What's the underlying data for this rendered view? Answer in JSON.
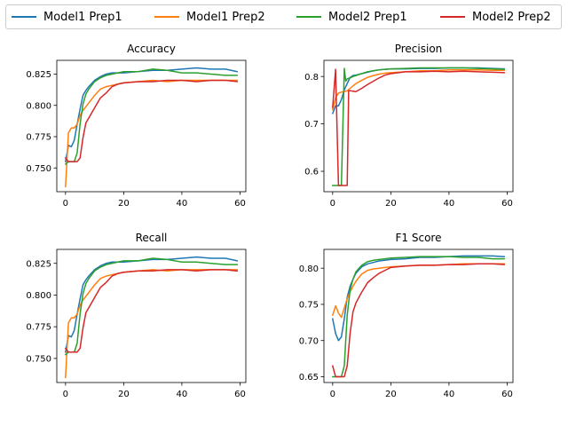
{
  "legend": [
    {
      "name": "Model1 Prep1",
      "color": "#1f77b4"
    },
    {
      "name": "Model1 Prep2",
      "color": "#ff7f0e"
    },
    {
      "name": "Model2 Prep1",
      "color": "#2ca02c"
    },
    {
      "name": "Model2 Prep2",
      "color": "#d62728"
    }
  ],
  "chart_data": [
    {
      "type": "line",
      "title": "Accuracy",
      "xlim": [
        -3,
        62
      ],
      "ylim": [
        0.731,
        0.836
      ],
      "xticks": [
        0,
        20,
        40,
        60
      ],
      "yticks": [
        0.75,
        0.775,
        0.8,
        0.825
      ],
      "yticklabels": [
        "0.750",
        "0.775",
        "0.800",
        "0.825"
      ],
      "series": [
        {
          "name": "Model1 Prep1",
          "color": "#1f77b4",
          "x": [
            0,
            1,
            2,
            3,
            4,
            5,
            6,
            7,
            8,
            10,
            12,
            14,
            16,
            18,
            20,
            25,
            30,
            35,
            40,
            45,
            50,
            55,
            59
          ],
          "y": [
            0.755,
            0.768,
            0.767,
            0.772,
            0.785,
            0.797,
            0.808,
            0.812,
            0.815,
            0.82,
            0.823,
            0.825,
            0.826,
            0.826,
            0.826,
            0.827,
            0.828,
            0.828,
            0.829,
            0.83,
            0.829,
            0.829,
            0.827
          ]
        },
        {
          "name": "Model1 Prep2",
          "color": "#ff7f0e",
          "x": [
            0,
            1,
            2,
            3,
            4,
            5,
            6,
            7,
            8,
            10,
            12,
            14,
            16,
            18,
            20,
            25,
            30,
            35,
            40,
            45,
            50,
            55,
            59
          ],
          "y": [
            0.735,
            0.778,
            0.782,
            0.782,
            0.785,
            0.792,
            0.796,
            0.799,
            0.802,
            0.808,
            0.813,
            0.815,
            0.816,
            0.817,
            0.818,
            0.819,
            0.82,
            0.819,
            0.82,
            0.82,
            0.82,
            0.82,
            0.82
          ]
        },
        {
          "name": "Model2 Prep1",
          "color": "#2ca02c",
          "x": [
            0,
            1,
            2,
            3,
            4,
            5,
            6,
            7,
            8,
            10,
            12,
            14,
            16,
            18,
            20,
            25,
            30,
            35,
            40,
            45,
            50,
            55,
            59
          ],
          "y": [
            0.753,
            0.755,
            0.755,
            0.755,
            0.762,
            0.785,
            0.801,
            0.809,
            0.813,
            0.819,
            0.822,
            0.824,
            0.825,
            0.826,
            0.827,
            0.827,
            0.829,
            0.828,
            0.826,
            0.826,
            0.825,
            0.824,
            0.824
          ]
        },
        {
          "name": "Model2 Prep2",
          "color": "#d62728",
          "x": [
            0,
            1,
            2,
            3,
            4,
            5,
            6,
            7,
            8,
            10,
            12,
            14,
            16,
            18,
            20,
            25,
            30,
            35,
            40,
            45,
            50,
            55,
            59
          ],
          "y": [
            0.758,
            0.755,
            0.755,
            0.755,
            0.755,
            0.758,
            0.774,
            0.786,
            0.79,
            0.798,
            0.806,
            0.81,
            0.815,
            0.817,
            0.818,
            0.819,
            0.819,
            0.82,
            0.82,
            0.819,
            0.82,
            0.82,
            0.819
          ]
        }
      ]
    },
    {
      "type": "line",
      "title": "Precision",
      "xlim": [
        -3,
        62
      ],
      "ylim": [
        0.557,
        0.834
      ],
      "xticks": [
        0,
        20,
        40,
        60
      ],
      "yticks": [
        0.6,
        0.7,
        0.8
      ],
      "yticklabels": [
        "0.6",
        "0.7",
        "0.8"
      ],
      "series": [
        {
          "name": "Model1 Prep1",
          "color": "#1f77b4",
          "x": [
            0,
            1,
            2,
            3,
            4,
            5,
            6,
            7,
            8,
            10,
            12,
            14,
            16,
            18,
            20,
            25,
            30,
            35,
            40,
            45,
            50,
            55,
            59
          ],
          "y": [
            0.722,
            0.738,
            0.738,
            0.751,
            0.772,
            0.785,
            0.798,
            0.802,
            0.803,
            0.806,
            0.809,
            0.812,
            0.814,
            0.815,
            0.816,
            0.816,
            0.817,
            0.817,
            0.818,
            0.818,
            0.818,
            0.817,
            0.816
          ]
        },
        {
          "name": "Model1 Prep2",
          "color": "#ff7f0e",
          "x": [
            0,
            1,
            2,
            3,
            4,
            5,
            6,
            7,
            8,
            10,
            12,
            14,
            16,
            18,
            20,
            25,
            30,
            35,
            40,
            45,
            50,
            55,
            59
          ],
          "y": [
            0.73,
            0.755,
            0.765,
            0.767,
            0.768,
            0.77,
            0.775,
            0.78,
            0.785,
            0.792,
            0.798,
            0.802,
            0.805,
            0.807,
            0.808,
            0.81,
            0.812,
            0.812,
            0.814,
            0.814,
            0.814,
            0.813,
            0.813
          ]
        },
        {
          "name": "Model2 Prep1",
          "color": "#2ca02c",
          "x": [
            0,
            1,
            2,
            3,
            4,
            4.5,
            5,
            6,
            7,
            8,
            10,
            12,
            14,
            16,
            18,
            20,
            25,
            30,
            35,
            40,
            45,
            50,
            55,
            59
          ],
          "y": [
            0.57,
            0.57,
            0.57,
            0.57,
            0.817,
            0.79,
            0.795,
            0.797,
            0.8,
            0.802,
            0.806,
            0.81,
            0.812,
            0.814,
            0.815,
            0.816,
            0.817,
            0.818,
            0.818,
            0.818,
            0.818,
            0.817,
            0.816,
            0.815
          ]
        },
        {
          "name": "Model2 Prep2",
          "color": "#d62728",
          "x": [
            0,
            1,
            2,
            3,
            4,
            5,
            5.5,
            6,
            7,
            8,
            10,
            12,
            14,
            16,
            18,
            20,
            25,
            30,
            35,
            40,
            45,
            50,
            55,
            59
          ],
          "y": [
            0.735,
            0.815,
            0.57,
            0.57,
            0.57,
            0.57,
            0.77,
            0.77,
            0.769,
            0.768,
            0.775,
            0.783,
            0.79,
            0.797,
            0.803,
            0.806,
            0.81,
            0.81,
            0.811,
            0.81,
            0.811,
            0.81,
            0.809,
            0.808
          ]
        }
      ]
    },
    {
      "type": "line",
      "title": "Recall",
      "xlim": [
        -3,
        62
      ],
      "ylim": [
        0.731,
        0.836
      ],
      "xticks": [
        0,
        20,
        40,
        60
      ],
      "yticks": [
        0.75,
        0.775,
        0.8,
        0.825
      ],
      "yticklabels": [
        "0.750",
        "0.775",
        "0.800",
        "0.825"
      ],
      "series": [
        {
          "name": "Model1 Prep1",
          "color": "#1f77b4",
          "x": [
            0,
            1,
            2,
            3,
            4,
            5,
            6,
            7,
            8,
            10,
            12,
            14,
            16,
            18,
            20,
            25,
            30,
            35,
            40,
            45,
            50,
            55,
            59
          ],
          "y": [
            0.755,
            0.768,
            0.767,
            0.772,
            0.785,
            0.797,
            0.808,
            0.812,
            0.815,
            0.82,
            0.823,
            0.825,
            0.826,
            0.826,
            0.826,
            0.827,
            0.828,
            0.828,
            0.829,
            0.83,
            0.829,
            0.829,
            0.827
          ]
        },
        {
          "name": "Model1 Prep2",
          "color": "#ff7f0e",
          "x": [
            0,
            1,
            2,
            3,
            4,
            5,
            6,
            7,
            8,
            10,
            12,
            14,
            16,
            18,
            20,
            25,
            30,
            35,
            40,
            45,
            50,
            55,
            59
          ],
          "y": [
            0.735,
            0.778,
            0.782,
            0.782,
            0.785,
            0.792,
            0.796,
            0.799,
            0.802,
            0.808,
            0.813,
            0.815,
            0.816,
            0.817,
            0.818,
            0.819,
            0.82,
            0.819,
            0.82,
            0.82,
            0.82,
            0.82,
            0.82
          ]
        },
        {
          "name": "Model2 Prep1",
          "color": "#2ca02c",
          "x": [
            0,
            1,
            2,
            3,
            4,
            5,
            6,
            7,
            8,
            10,
            12,
            14,
            16,
            18,
            20,
            25,
            30,
            35,
            40,
            45,
            50,
            55,
            59
          ],
          "y": [
            0.753,
            0.755,
            0.755,
            0.755,
            0.762,
            0.785,
            0.801,
            0.809,
            0.813,
            0.819,
            0.822,
            0.824,
            0.825,
            0.826,
            0.827,
            0.827,
            0.829,
            0.828,
            0.826,
            0.826,
            0.825,
            0.824,
            0.824
          ]
        },
        {
          "name": "Model2 Prep2",
          "color": "#d62728",
          "x": [
            0,
            1,
            2,
            3,
            4,
            5,
            6,
            7,
            8,
            10,
            12,
            14,
            16,
            18,
            20,
            25,
            30,
            35,
            40,
            45,
            50,
            55,
            59
          ],
          "y": [
            0.758,
            0.755,
            0.755,
            0.755,
            0.755,
            0.758,
            0.774,
            0.786,
            0.79,
            0.798,
            0.806,
            0.81,
            0.815,
            0.817,
            0.818,
            0.819,
            0.819,
            0.82,
            0.82,
            0.819,
            0.82,
            0.82,
            0.819
          ]
        }
      ]
    },
    {
      "type": "line",
      "title": "F1 Score",
      "xlim": [
        -3,
        62
      ],
      "ylim": [
        0.642,
        0.826
      ],
      "xticks": [
        0,
        20,
        40,
        60
      ],
      "yticks": [
        0.65,
        0.7,
        0.75,
        0.8
      ],
      "yticklabels": [
        "0.65",
        "0.70",
        "0.75",
        "0.80"
      ],
      "series": [
        {
          "name": "Model1 Prep1",
          "color": "#1f77b4",
          "x": [
            0,
            1,
            2,
            3,
            4,
            5,
            6,
            7,
            8,
            10,
            12,
            14,
            16,
            18,
            20,
            25,
            30,
            35,
            40,
            45,
            50,
            55,
            59
          ],
          "y": [
            0.73,
            0.71,
            0.7,
            0.705,
            0.73,
            0.76,
            0.775,
            0.785,
            0.793,
            0.802,
            0.806,
            0.808,
            0.81,
            0.811,
            0.812,
            0.813,
            0.815,
            0.815,
            0.816,
            0.817,
            0.817,
            0.817,
            0.816
          ]
        },
        {
          "name": "Model1 Prep2",
          "color": "#ff7f0e",
          "x": [
            0,
            1,
            2,
            3,
            4,
            5,
            6,
            7,
            8,
            10,
            12,
            14,
            16,
            18,
            20,
            25,
            30,
            35,
            40,
            45,
            50,
            55,
            59
          ],
          "y": [
            0.735,
            0.748,
            0.738,
            0.732,
            0.745,
            0.758,
            0.767,
            0.775,
            0.782,
            0.792,
            0.797,
            0.799,
            0.8,
            0.801,
            0.802,
            0.803,
            0.804,
            0.804,
            0.805,
            0.806,
            0.806,
            0.806,
            0.806
          ]
        },
        {
          "name": "Model2 Prep1",
          "color": "#2ca02c",
          "x": [
            0,
            1,
            2,
            3,
            4,
            5,
            6,
            7,
            8,
            10,
            12,
            14,
            16,
            18,
            20,
            25,
            30,
            35,
            40,
            45,
            50,
            55,
            59
          ],
          "y": [
            0.65,
            0.65,
            0.65,
            0.65,
            0.665,
            0.735,
            0.77,
            0.785,
            0.795,
            0.804,
            0.809,
            0.811,
            0.812,
            0.813,
            0.814,
            0.815,
            0.816,
            0.816,
            0.816,
            0.815,
            0.815,
            0.813,
            0.813
          ]
        },
        {
          "name": "Model2 Prep2",
          "color": "#d62728",
          "x": [
            0,
            1,
            2,
            3,
            4,
            5,
            6,
            7,
            8,
            10,
            12,
            14,
            16,
            18,
            20,
            25,
            30,
            35,
            40,
            45,
            50,
            55,
            59
          ],
          "y": [
            0.665,
            0.65,
            0.65,
            0.65,
            0.65,
            0.665,
            0.71,
            0.74,
            0.752,
            0.767,
            0.78,
            0.787,
            0.793,
            0.797,
            0.801,
            0.803,
            0.804,
            0.804,
            0.805,
            0.805,
            0.806,
            0.806,
            0.805
          ]
        }
      ]
    }
  ]
}
